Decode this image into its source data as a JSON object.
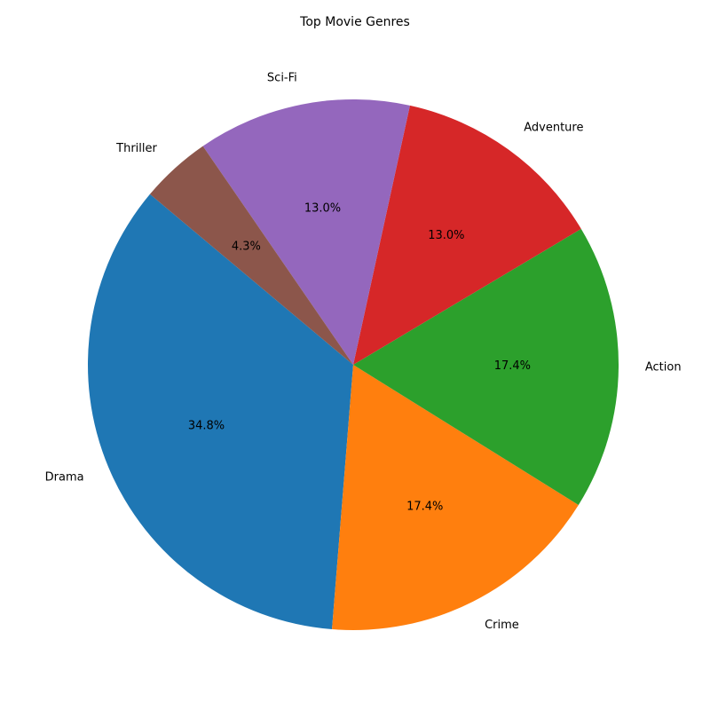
{
  "chart_data": {
    "type": "pie",
    "title": "Top Movie Genres",
    "labels": [
      "Drama",
      "Crime",
      "Action",
      "Adventure",
      "Sci-Fi",
      "Thriller"
    ],
    "values": [
      34.8,
      17.4,
      17.4,
      13.0,
      13.0,
      4.3
    ],
    "percent_labels": [
      "34.8%",
      "17.4%",
      "17.4%",
      "13.0%",
      "13.0%",
      "4.3%"
    ],
    "colors": [
      "#1f77b4",
      "#ff7f0e",
      "#2ca02c",
      "#d62728",
      "#9467bd",
      "#8c564b"
    ],
    "start_angle_deg": 140,
    "direction": "counterclockwise"
  }
}
